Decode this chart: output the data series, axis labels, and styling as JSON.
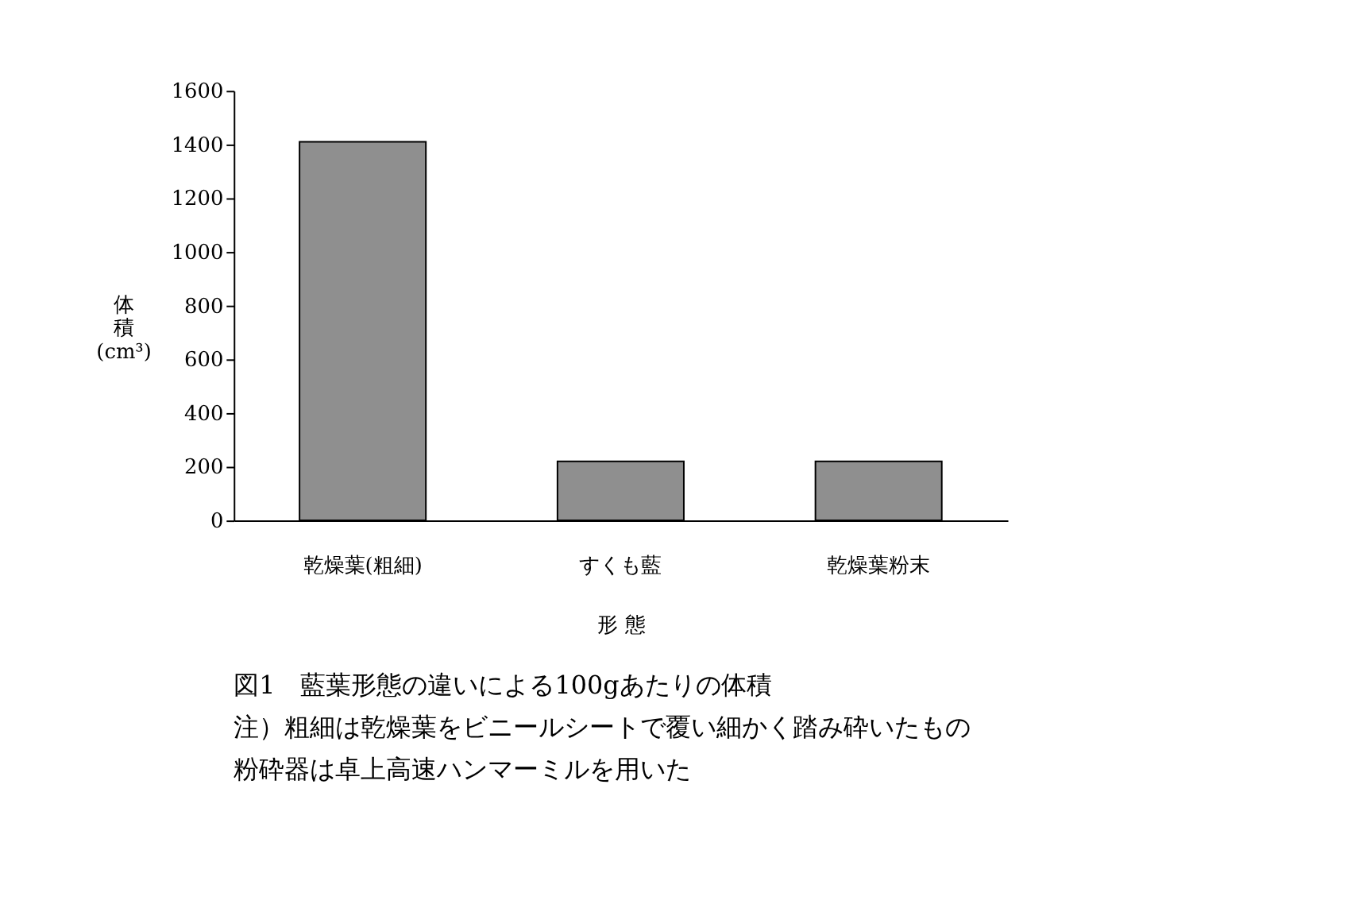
{
  "chart_data": {
    "type": "bar",
    "title": "図1　藍葉形態の違いによる100gあたりの体積",
    "xlabel": "形 態",
    "ylabel": "体積(cm³)",
    "categories": [
      "乾燥葉(粗細)",
      "すくも藍",
      "乾燥葉粉末"
    ],
    "values": [
      1410,
      220,
      220
    ],
    "color": "#8f8f8f",
    "ylim": [
      0,
      1600
    ],
    "yticks": [
      0,
      200,
      400,
      600,
      800,
      1000,
      1200,
      1400,
      1600
    ],
    "grid": false,
    "annotations": [
      "注）粗細は乾燥葉をビニールシートで覆い細かく踏み砕いたもの",
      "粉砕器は卓上高速ハンマーミルを用いた"
    ]
  }
}
